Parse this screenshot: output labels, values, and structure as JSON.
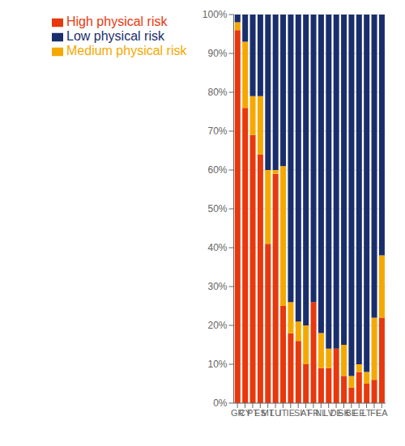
{
  "chart_data": {
    "type": "bar",
    "stacked": true,
    "grid": true,
    "legend": "top-left",
    "categories": [
      "GR",
      "CY",
      "PT",
      "ES",
      "MT",
      "LU",
      "IT",
      "IE",
      "SI",
      "AT",
      "FR",
      "NL",
      "LV",
      "DE",
      "SK",
      "BE",
      "EE",
      "LT",
      "FI",
      "EA"
    ],
    "series": [
      {
        "name": "High physical risk",
        "color": "#E8380D",
        "values": [
          96,
          76,
          69,
          64,
          41,
          59,
          25,
          18,
          16,
          10,
          26,
          9,
          9,
          14,
          7,
          4,
          8,
          5,
          6,
          22
        ]
      },
      {
        "name": "Medium physical risk",
        "color": "#F5A800",
        "values": [
          2,
          17,
          10,
          15,
          19,
          1,
          36,
          8,
          5,
          10,
          0,
          9,
          5,
          0,
          8,
          3,
          2,
          3,
          16,
          16
        ]
      },
      {
        "name": "Low physical risk",
        "color": "#1A2E6C",
        "values": [
          2,
          7,
          21,
          21,
          40,
          40,
          39,
          74,
          79,
          80,
          74,
          82,
          86,
          86,
          85,
          93,
          90,
          92,
          78,
          62
        ]
      }
    ],
    "ylim": [
      0,
      100
    ],
    "yticks": [
      {
        "value": 0,
        "label": "0%"
      },
      {
        "value": 10,
        "label": "10%"
      },
      {
        "value": 20,
        "label": "20%"
      },
      {
        "value": 30,
        "label": "30%"
      },
      {
        "value": 40,
        "label": "40%"
      },
      {
        "value": 50,
        "label": "50%"
      },
      {
        "value": 60,
        "label": "60%"
      },
      {
        "value": 70,
        "label": "70%"
      },
      {
        "value": 80,
        "label": "80%"
      },
      {
        "value": 90,
        "label": "90%"
      },
      {
        "value": 100,
        "label": "100%"
      }
    ]
  }
}
